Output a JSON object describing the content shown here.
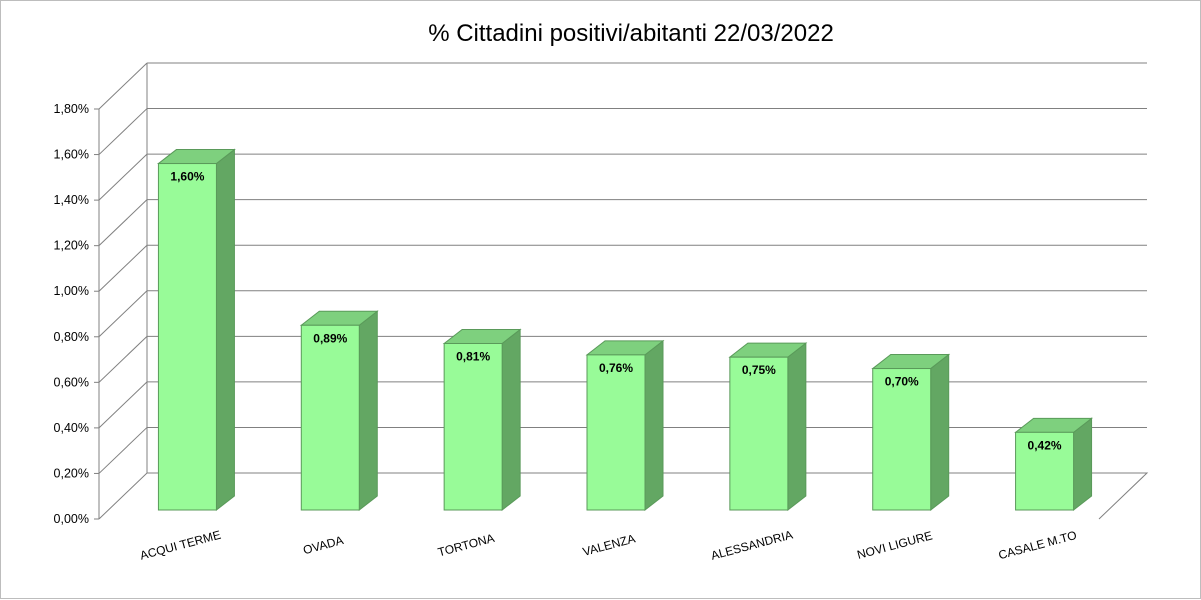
{
  "chart_data": {
    "type": "bar",
    "title": "% Cittadini positivi/abitanti 22/03/2022",
    "categories": [
      "ACQUI TERME",
      "OVADA",
      "TORTONA",
      "VALENZA",
      "ALESSANDRIA",
      "NOVI LIGURE",
      "CASALE M.TO"
    ],
    "values": [
      1.6,
      0.89,
      0.81,
      0.76,
      0.75,
      0.7,
      0.42
    ],
    "value_labels": [
      "1,60%",
      "0,89%",
      "0,81%",
      "0,76%",
      "0,75%",
      "0,70%",
      "0,42%"
    ],
    "ylim": [
      0,
      1.8
    ],
    "yticks": [
      0,
      0.2,
      0.4,
      0.6,
      0.8,
      1.0,
      1.2,
      1.4,
      1.6,
      1.8
    ],
    "ytick_labels": [
      "0,00%",
      "0,20%",
      "0,40%",
      "0,60%",
      "0,80%",
      "1,00%",
      "1,20%",
      "1,40%",
      "1,60%",
      "1,80%"
    ],
    "grid": true,
    "style": "3d",
    "colors": {
      "bar_front": "#98FB98",
      "bar_top": "#7ED07E",
      "bar_side": "#63A763",
      "bar_edge": "#5A9A5A",
      "grid": "#808080"
    }
  }
}
